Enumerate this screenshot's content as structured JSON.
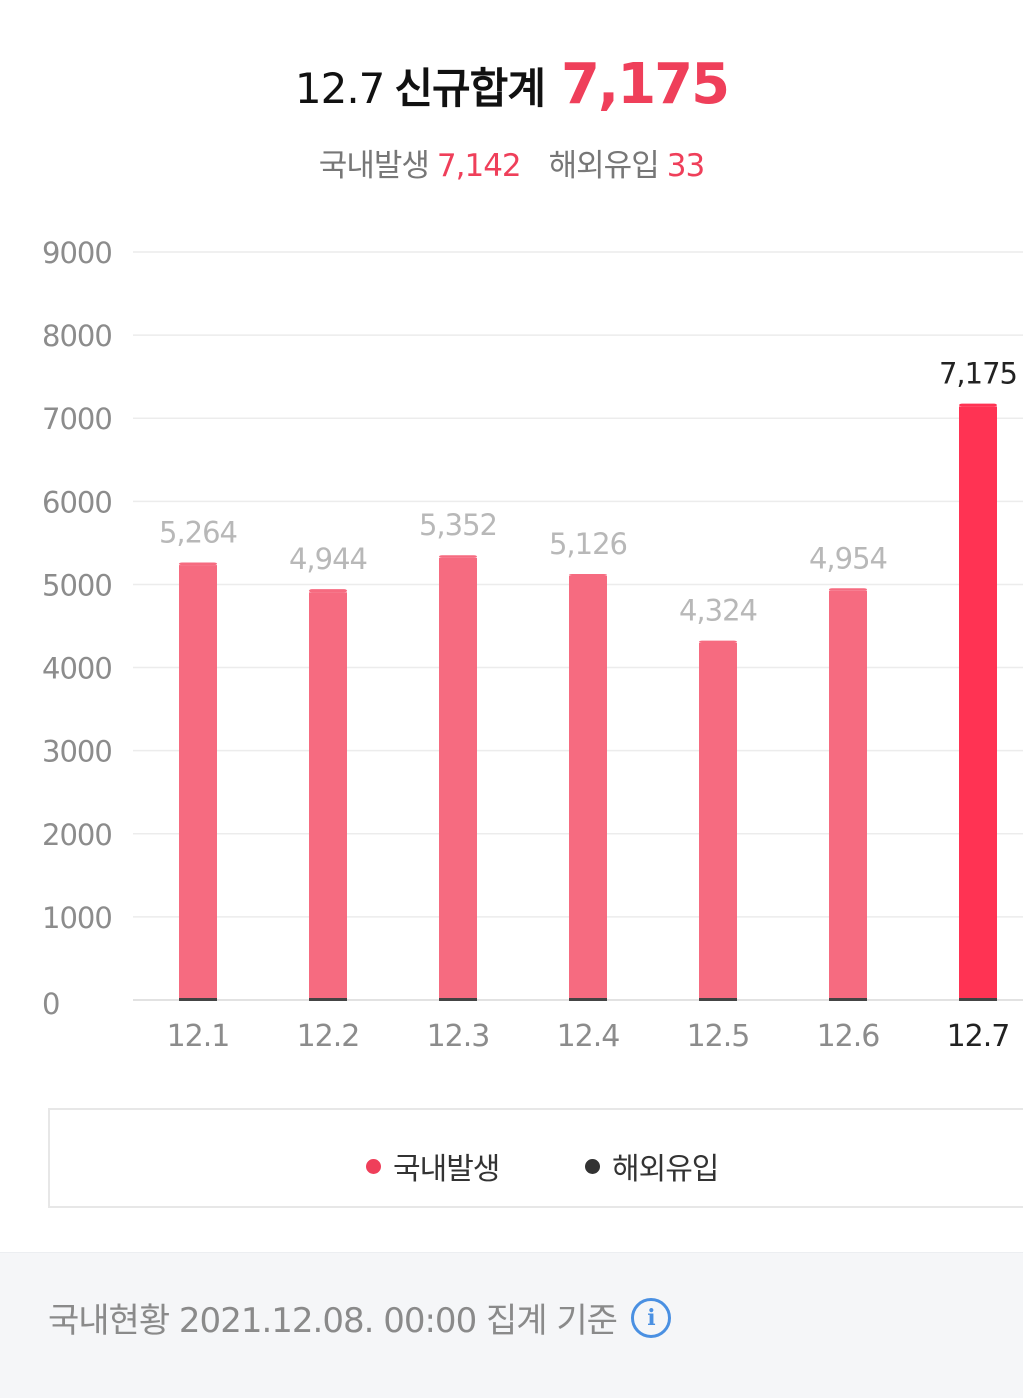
{
  "header": {
    "date": "12.7",
    "total_label": "신규합계",
    "total_value": "7,175",
    "domestic_label": "국내발생",
    "domestic_value": "7,142",
    "overseas_label": "해외유입",
    "overseas_value": "33"
  },
  "legend": {
    "domestic": "국내발생",
    "overseas": "해외유입"
  },
  "footer": {
    "text": "국내현황 2021.12.08. 00:00 집계 기준",
    "info_icon": "info-circle-icon",
    "info_glyph": "i"
  },
  "colors": {
    "accent": "#ef3f5a",
    "bar": "#f66b80",
    "bar_highlight": "#ff3353",
    "overseas": "#333333"
  },
  "chart_data": {
    "type": "bar",
    "stacked": true,
    "categories": [
      "12.1",
      "12.2",
      "12.3",
      "12.4",
      "12.5",
      "12.6",
      "12.7"
    ],
    "series": [
      {
        "name": "국내발생",
        "values": [
          5233,
          4905,
          5319,
          5102,
          4296,
          4925,
          7142
        ]
      },
      {
        "name": "해외유입",
        "values": [
          31,
          39,
          33,
          24,
          28,
          29,
          33
        ]
      }
    ],
    "totals": [
      5264,
      4944,
      5352,
      5126,
      4324,
      4954,
      7175
    ],
    "total_labels": [
      "5,264",
      "4,944",
      "5,352",
      "5,126",
      "4,324",
      "4,954",
      "7,175"
    ],
    "yticks": [
      "0",
      "1000",
      "2000",
      "3000",
      "4000",
      "5000",
      "6000",
      "7000",
      "8000",
      "9000"
    ],
    "ylim": [
      0,
      9000
    ],
    "highlight_index": 6,
    "grid": true,
    "legend_position": "bottom"
  }
}
